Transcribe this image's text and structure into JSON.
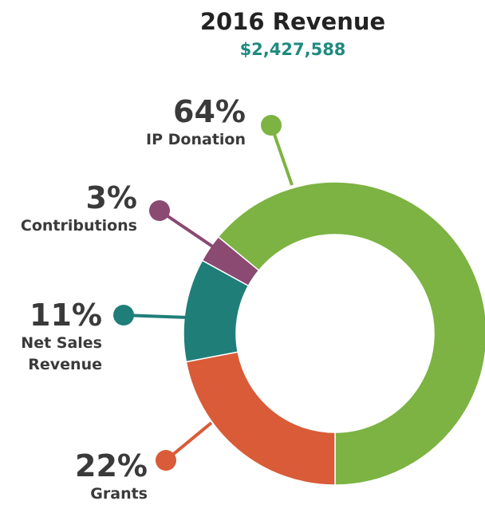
{
  "chart_data": {
    "type": "donut",
    "title": "2016 Revenue",
    "subtitle": "$2,427,588",
    "categories": [
      "IP Donation",
      "Contributions",
      "Net Sales Revenue",
      "Grants"
    ],
    "values": [
      64,
      3,
      11,
      22
    ],
    "value_labels": [
      "64%",
      "3%",
      "11%",
      "22%"
    ],
    "colors": [
      "#7cb342",
      "#8a4a72",
      "#1f7f78",
      "#d95b37"
    ]
  }
}
